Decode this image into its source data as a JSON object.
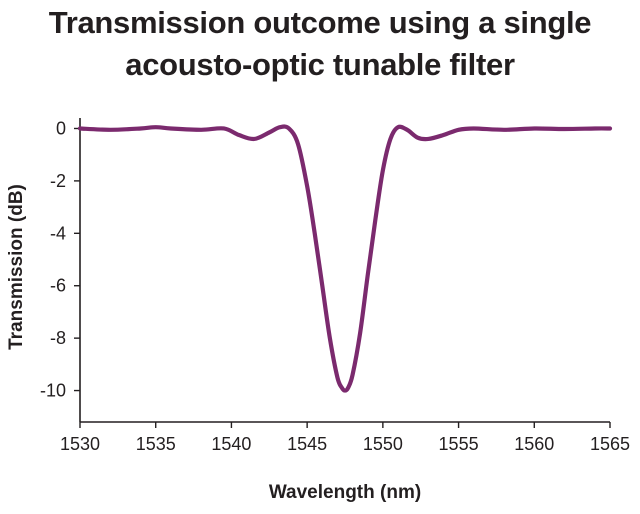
{
  "title": {
    "line1": "Transmission outcome using a single",
    "line2": "acousto-optic tunable filter"
  },
  "chart_data": {
    "type": "line",
    "title": "Transmission outcome using a single acousto-optic tunable filter",
    "xlabel": "Wavelength (nm)",
    "ylabel": "Transmission (dB)",
    "xlim": [
      1530,
      1565
    ],
    "ylim": [
      -11.2,
      0.4
    ],
    "xticks": [
      1530,
      1535,
      1540,
      1545,
      1550,
      1555,
      1560,
      1565
    ],
    "yticks": [
      0,
      -2,
      -4,
      -6,
      -8,
      -10
    ],
    "grid": false,
    "series": [
      {
        "color": "#7b2a6e",
        "x": [
          1530,
          1532,
          1534,
          1535,
          1536,
          1538,
          1539.5,
          1540.5,
          1541.5,
          1542.5,
          1543.2,
          1543.8,
          1544.4,
          1545,
          1545.5,
          1546,
          1546.5,
          1547,
          1547.3,
          1547.5,
          1547.7,
          1548,
          1548.5,
          1549,
          1549.5,
          1550,
          1550.5,
          1551,
          1551.6,
          1552.3,
          1553,
          1554,
          1555,
          1556,
          1558,
          1560,
          1562,
          1564,
          1565
        ],
        "y": [
          0.0,
          -0.05,
          0.0,
          0.05,
          0.0,
          -0.05,
          0.0,
          -0.25,
          -0.4,
          -0.15,
          0.05,
          0.0,
          -0.6,
          -2.2,
          -4.0,
          -6.0,
          -8.0,
          -9.5,
          -9.9,
          -10.0,
          -9.9,
          -9.4,
          -7.8,
          -5.6,
          -3.5,
          -1.6,
          -0.4,
          0.05,
          -0.05,
          -0.35,
          -0.4,
          -0.25,
          -0.05,
          0.0,
          -0.05,
          0.0,
          -0.02,
          0.0,
          0.0
        ]
      }
    ]
  }
}
